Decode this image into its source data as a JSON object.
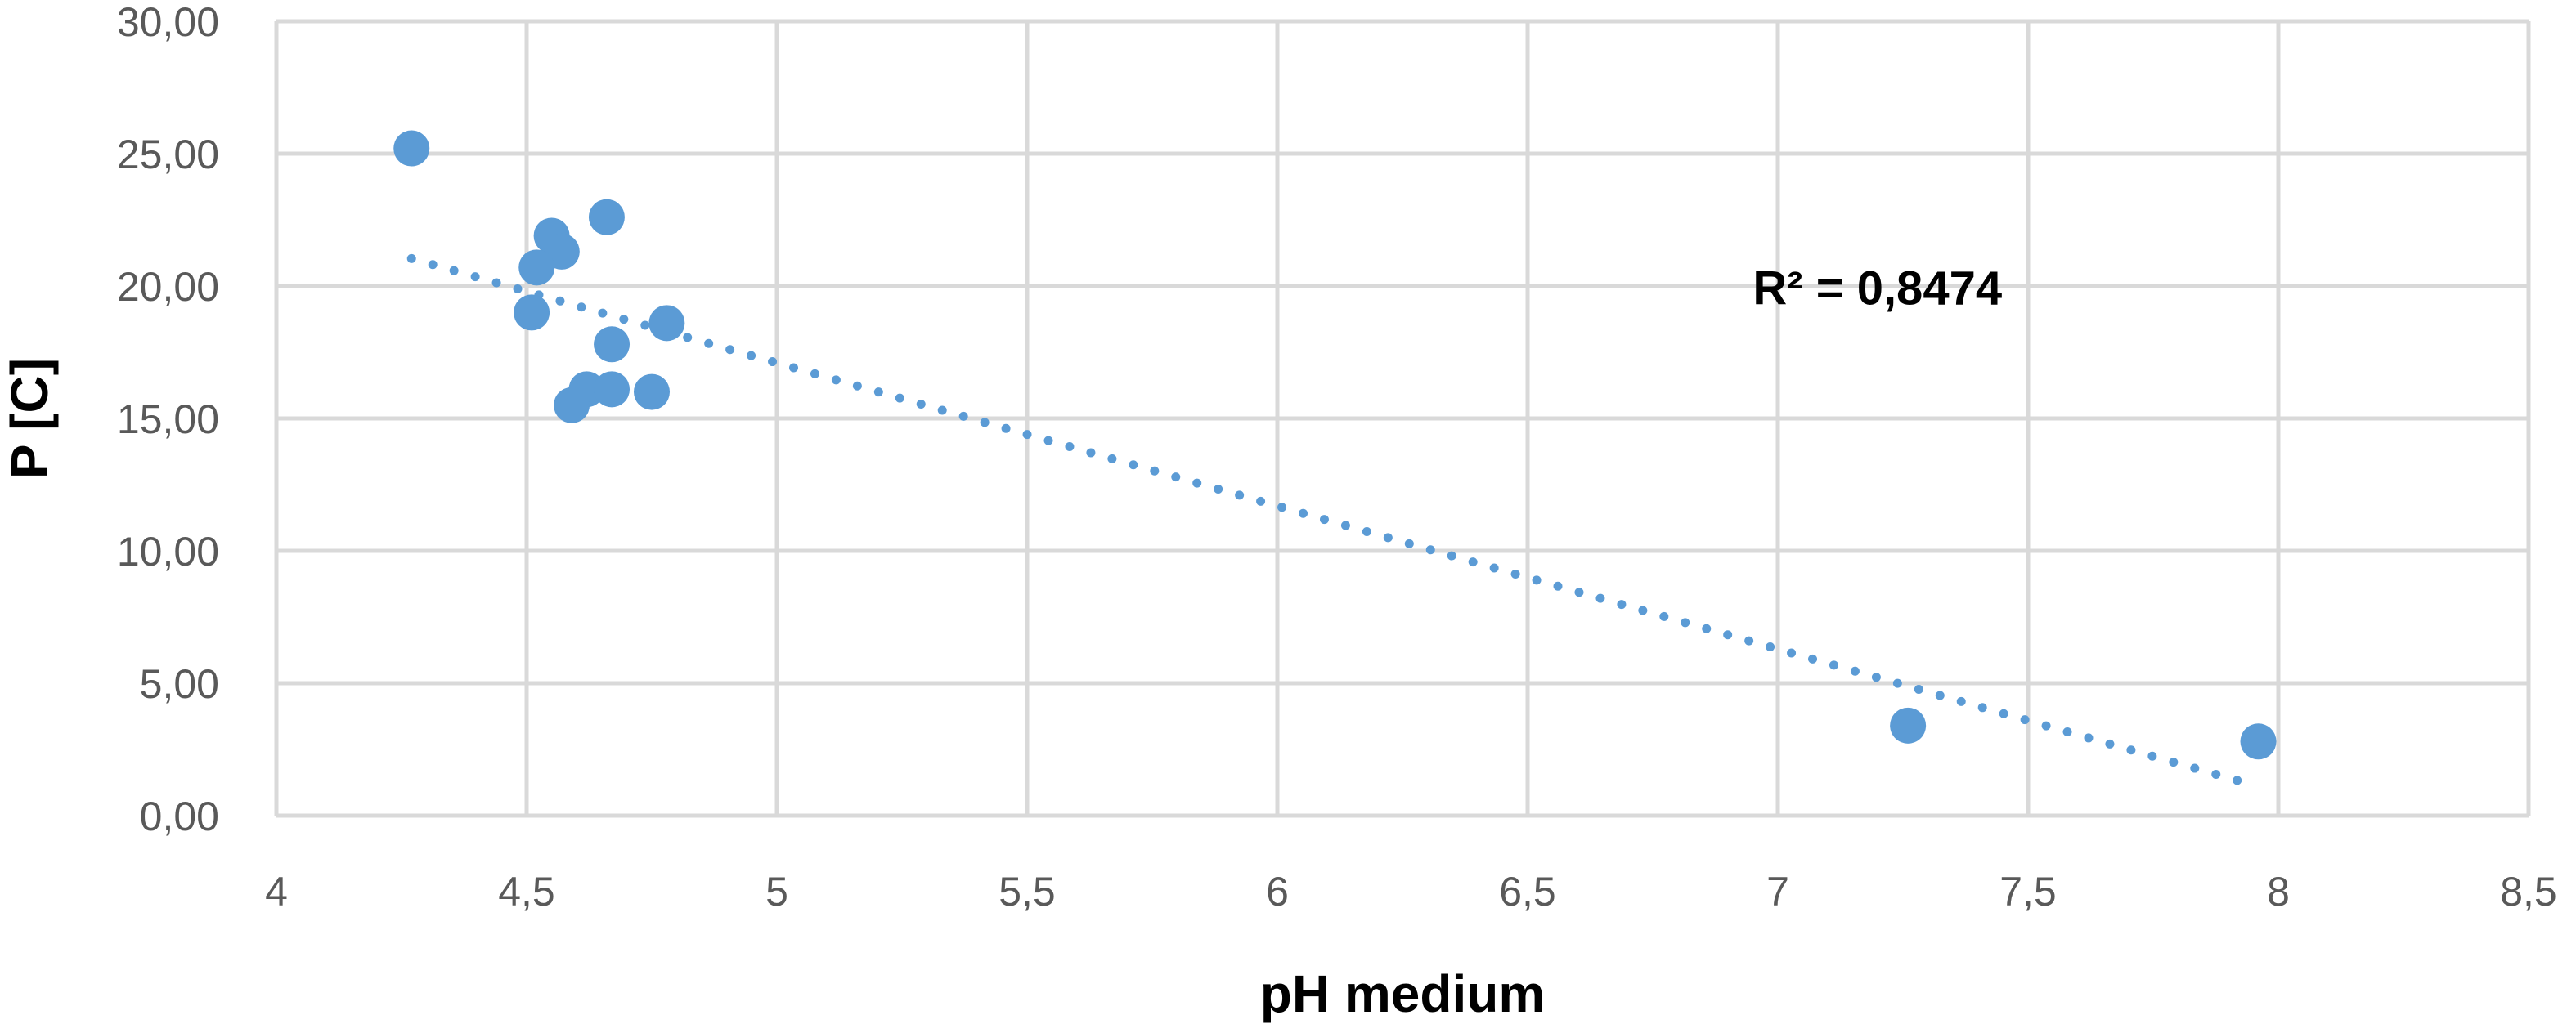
{
  "chart_data": {
    "type": "scatter",
    "xlabel": "pH medium",
    "ylabel": "P [C]",
    "xlim": [
      4,
      8.5
    ],
    "ylim": [
      0,
      30
    ],
    "x_ticks": [
      4,
      4.5,
      5,
      5.5,
      6,
      6.5,
      7,
      7.5,
      8,
      8.5
    ],
    "x_tick_labels": [
      "4",
      "4,5",
      "5",
      "5,5",
      "6",
      "6,5",
      "7",
      "7,5",
      "8",
      "8,5"
    ],
    "y_ticks": [
      0,
      5,
      10,
      15,
      20,
      25,
      30
    ],
    "y_tick_labels": [
      "0,00",
      "5,00",
      "10,00",
      "15,00",
      "20,00",
      "25,00",
      "30,00"
    ],
    "grid": true,
    "legend": false,
    "series": [
      {
        "color": "#5B9BD5",
        "points": [
          {
            "x": 4.27,
            "y": 25.2
          },
          {
            "x": 4.55,
            "y": 21.9
          },
          {
            "x": 4.66,
            "y": 22.6
          },
          {
            "x": 4.57,
            "y": 21.3
          },
          {
            "x": 4.52,
            "y": 20.7
          },
          {
            "x": 4.51,
            "y": 19.0
          },
          {
            "x": 4.78,
            "y": 18.6
          },
          {
            "x": 4.67,
            "y": 17.8
          },
          {
            "x": 4.62,
            "y": 16.1
          },
          {
            "x": 4.67,
            "y": 16.1
          },
          {
            "x": 4.75,
            "y": 16.0
          },
          {
            "x": 4.59,
            "y": 15.5
          },
          {
            "x": 7.26,
            "y": 3.4
          },
          {
            "x": 7.96,
            "y": 2.8
          }
        ]
      }
    ],
    "trendline": {
      "type": "linear",
      "style": "dotted",
      "color": "#5B9BD5",
      "x_start": 4.27,
      "x_end": 7.96,
      "slope": -5.403,
      "intercept": 44.11
    },
    "annotations": [
      {
        "text": "R² = 0,8474",
        "x": 6.95,
        "y": 19.3
      }
    ]
  }
}
